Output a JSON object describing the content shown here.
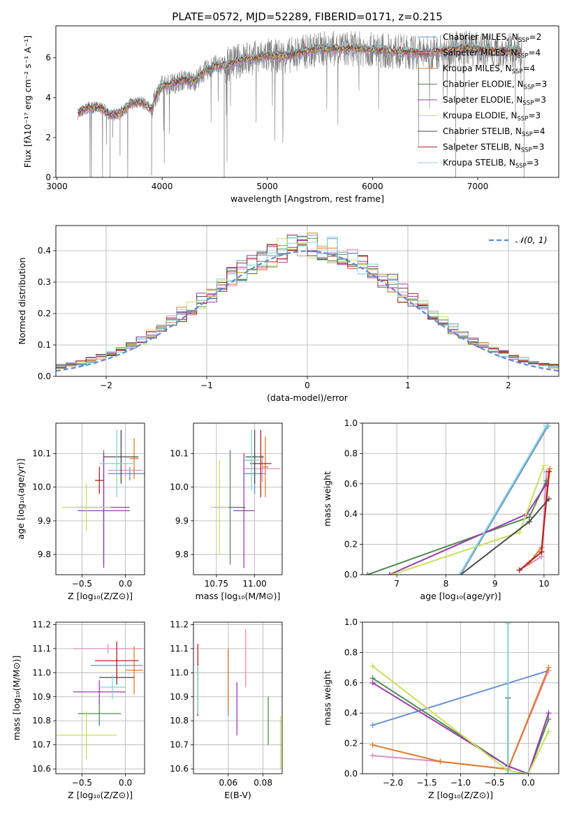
{
  "title": "PLATE=0572, MJD=52289, FIBERID=0171, z=0.215",
  "colors": {
    "Chabrier MILES": "#6a8fd6",
    "Salpeter MILES": "#e08cc4",
    "Kroupa MILES": "#e07b24",
    "Chabrier ELODIE": "#4f8a4f",
    "Salpeter ELODIE": "#9a3cb0",
    "Kroupa ELODIE": "#c9e05a",
    "Chabrier STELIB": "#4a4a4a",
    "Salpeter STELIB": "#b22222",
    "Kroupa STELIB": "#7fd3d6",
    "data": "#808080",
    "normal": "#5b8ad6",
    "grid": "#b0b0b0"
  },
  "chart_data": [
    {
      "id": "spectrum",
      "type": "line",
      "xlabel": "wavelength [Angstrom, rest frame]",
      "ylabel": "Flux [fλ10⁻¹⁷ erg cm⁻² s⁻¹ A⁻¹]",
      "xlim": [
        2990,
        7770
      ],
      "ylim": [
        0,
        7.6
      ],
      "xticks": [
        3000,
        4000,
        5000,
        6000,
        7000
      ],
      "yticks": [
        0,
        2,
        4,
        6
      ],
      "grid": false,
      "legend_position": "top-right",
      "legend": [
        {
          "label": "Chabrier MILES, N",
          "sub": "SSP",
          "tail": "=2"
        },
        {
          "label": "Salpeter MILES, N",
          "sub": "SSP",
          "tail": "=4"
        },
        {
          "label": "Kroupa MILES, N",
          "sub": "SSP",
          "tail": "=4"
        },
        {
          "label": "Chabrier ELODIE, N",
          "sub": "SSP",
          "tail": "=3"
        },
        {
          "label": "Salpeter ELODIE, N",
          "sub": "SSP",
          "tail": "=3"
        },
        {
          "label": "Kroupa ELODIE, N",
          "sub": "SSP",
          "tail": "=3"
        },
        {
          "label": "Chabrier STELIB, N",
          "sub": "SSP",
          "tail": "=4"
        },
        {
          "label": "Salpeter STELIB, N",
          "sub": "SSP",
          "tail": "=3"
        },
        {
          "label": "Kroupa STELIB, N",
          "sub": "SSP",
          "tail": "=3"
        }
      ],
      "continuum": [
        [
          3200,
          3.2
        ],
        [
          3300,
          3.5
        ],
        [
          3400,
          3.5
        ],
        [
          3450,
          3.4
        ],
        [
          3500,
          3.1
        ],
        [
          3600,
          3.2
        ],
        [
          3700,
          3.7
        ],
        [
          3800,
          3.8
        ],
        [
          3900,
          3.4
        ],
        [
          3950,
          4.2
        ],
        [
          4000,
          4.6
        ],
        [
          4100,
          4.7
        ],
        [
          4200,
          4.9
        ],
        [
          4300,
          4.8
        ],
        [
          4400,
          5.3
        ],
        [
          4500,
          5.6
        ],
        [
          4600,
          5.6
        ],
        [
          4700,
          5.8
        ],
        [
          4800,
          5.95
        ],
        [
          4900,
          6.0
        ],
        [
          5000,
          6.1
        ],
        [
          5100,
          6.05
        ],
        [
          5200,
          6.1
        ],
        [
          5300,
          6.25
        ],
        [
          5500,
          6.45
        ],
        [
          5700,
          6.45
        ],
        [
          5900,
          6.45
        ],
        [
          6100,
          6.35
        ],
        [
          6300,
          6.3
        ],
        [
          6500,
          6.2
        ],
        [
          6700,
          6.35
        ],
        [
          6900,
          6.5
        ],
        [
          7000,
          6.4
        ],
        [
          7200,
          6.3
        ],
        [
          7400,
          6.35
        ]
      ],
      "absorption_dips": [
        [
          3505,
          0.0
        ],
        [
          3530,
          2.0
        ],
        [
          3600,
          1.1
        ],
        [
          3900,
          0.1
        ],
        [
          4590,
          0.0
        ],
        [
          6790,
          0.0
        ],
        [
          7440,
          0.0
        ]
      ]
    },
    {
      "id": "residuals",
      "type": "histogram",
      "xlabel": "(data-model)/error",
      "ylabel": "Normed distribution",
      "xlim": [
        -2.5,
        2.5
      ],
      "ylim": [
        0,
        0.48
      ],
      "xticks": [
        -2,
        -1,
        0,
        1,
        2
      ],
      "yticks": [
        0.0,
        0.1,
        0.2,
        0.3,
        0.4
      ],
      "grid": true,
      "legend_position": "top-right",
      "normal_label": "𝒩(0, 1)",
      "bin_width": 0.1,
      "bin_start": -2.5
    },
    {
      "id": "age_vs_Z",
      "type": "errorbar",
      "xlabel": "Z [log₁₀(Z/Z⊙)]",
      "ylabel": "age  [log₁₀(age/yr)]",
      "xlim": [
        -0.8,
        0.22
      ],
      "ylim": [
        9.74,
        10.19
      ],
      "xticks": [
        -0.5,
        0.0
      ],
      "yticks": [
        9.8,
        9.9,
        10.0,
        10.1
      ],
      "grid": true,
      "points": [
        {
          "model": "Chabrier MILES",
          "x": 0.05,
          "xerr": 0.25,
          "y": 10.04,
          "yerr": 0.02
        },
        {
          "model": "Salpeter MILES",
          "x": 0.0,
          "xerr": 0.2,
          "y": 10.05,
          "yerr": 0.02
        },
        {
          "model": "Kroupa MILES",
          "x": 0.1,
          "xerr": 0.05,
          "y": 10.085,
          "yerr": 0.06
        },
        {
          "model": "Chabrier ELODIE",
          "x": -0.25,
          "xerr": 0.3,
          "y": 9.94,
          "yerr": 0.17
        },
        {
          "model": "Salpeter ELODIE",
          "x": -0.25,
          "xerr": 0.3,
          "y": 9.93,
          "yerr": 0.17
        },
        {
          "model": "Kroupa ELODIE",
          "x": -0.45,
          "xerr": 0.28,
          "y": 9.94,
          "yerr": 0.07
        },
        {
          "model": "Chabrier STELIB",
          "x": -0.05,
          "xerr": 0.2,
          "y": 10.09,
          "yerr": 0.08
        },
        {
          "model": "Salpeter STELIB",
          "x": -0.3,
          "xerr": 0.05,
          "y": 10.02,
          "yerr": 0.04
        },
        {
          "model": "Kroupa STELIB",
          "x": -0.1,
          "xerr": 0.2,
          "y": 10.07,
          "yerr": 0.1
        }
      ]
    },
    {
      "id": "age_vs_mass",
      "type": "errorbar",
      "xlabel": "mass [log₁₀(M/M⊙)]",
      "ylabel": "",
      "xlim": [
        10.6,
        11.18
      ],
      "ylim": [
        9.74,
        10.19
      ],
      "xticks": [
        10.75,
        11.0
      ],
      "yticks": [
        9.8,
        9.9,
        10.0,
        10.1
      ],
      "grid": true,
      "points": [
        {
          "model": "Chabrier MILES",
          "x": 11.0,
          "xerr": 0.07,
          "y": 10.04,
          "yerr": 0.06
        },
        {
          "model": "Salpeter MILES",
          "x": 11.05,
          "xerr": 0.12,
          "y": 10.055,
          "yerr": 0.04
        },
        {
          "model": "Kroupa MILES",
          "x": 11.07,
          "xerr": 0.02,
          "y": 10.06,
          "yerr": 0.09
        },
        {
          "model": "Chabrier ELODIE",
          "x": 10.84,
          "xerr": 0.1,
          "y": 9.94,
          "yerr": 0.17
        },
        {
          "model": "Salpeter ELODIE",
          "x": 10.93,
          "xerr": 0.07,
          "y": 9.93,
          "yerr": 0.17
        },
        {
          "model": "Kroupa ELODIE",
          "x": 10.77,
          "xerr": 0.06,
          "y": 9.94,
          "yerr": 0.14
        },
        {
          "model": "Chabrier STELIB",
          "x": 11.0,
          "xerr": 0.06,
          "y": 10.09,
          "yerr": 0.08
        },
        {
          "model": "Salpeter STELIB",
          "x": 11.04,
          "xerr": 0.07,
          "y": 10.07,
          "yerr": 0.1
        },
        {
          "model": "Kroupa STELIB",
          "x": 10.98,
          "xerr": 0.05,
          "y": 10.08,
          "yerr": 0.09
        }
      ]
    },
    {
      "id": "weight_vs_age",
      "type": "line",
      "xlabel": "age  [log₁₀(age/yr)]",
      "ylabel": "mass weight",
      "xlim": [
        6.3,
        10.3
      ],
      "ylim": [
        0,
        1.0
      ],
      "xticks": [
        7,
        8,
        9,
        10
      ],
      "yticks": [
        0.0,
        0.2,
        0.4,
        0.6,
        0.8,
        1.0
      ],
      "grid": true,
      "series": [
        {
          "model": "Chabrier MILES",
          "points": [
            [
              8.3,
              0.0
            ],
            [
              10.08,
              0.98
            ]
          ]
        },
        {
          "model": "Salpeter MILES",
          "points": [
            [
              9.5,
              0.03
            ],
            [
              9.95,
              0.12
            ],
            [
              10.05,
              0.68
            ]
          ]
        },
        {
          "model": "Kroupa MILES",
          "points": [
            [
              9.5,
              0.03
            ],
            [
              9.7,
              0.08
            ],
            [
              9.95,
              0.18
            ],
            [
              10.12,
              0.7
            ]
          ]
        },
        {
          "model": "Chabrier ELODIE",
          "points": [
            [
              6.4,
              0.0
            ],
            [
              9.7,
              0.38
            ],
            [
              10.05,
              0.62
            ]
          ]
        },
        {
          "model": "Salpeter ELODIE",
          "points": [
            [
              6.85,
              0.0
            ],
            [
              9.65,
              0.4
            ],
            [
              10.05,
              0.6
            ]
          ]
        },
        {
          "model": "Kroupa ELODIE",
          "points": [
            [
              6.9,
              0.0
            ],
            [
              9.5,
              0.28
            ],
            [
              10.0,
              0.72
            ]
          ]
        },
        {
          "model": "Chabrier STELIB",
          "points": [
            [
              8.3,
              0.0
            ],
            [
              9.7,
              0.35
            ],
            [
              10.1,
              0.5
            ]
          ]
        },
        {
          "model": "Salpeter STELIB",
          "points": [
            [
              9.5,
              0.03
            ],
            [
              9.95,
              0.15
            ],
            [
              10.1,
              0.68
            ]
          ]
        },
        {
          "model": "Kroupa STELIB",
          "points": [
            [
              8.28,
              0.0
            ],
            [
              10.05,
              0.98
            ]
          ]
        }
      ]
    },
    {
      "id": "mass_vs_Z",
      "type": "errorbar",
      "xlabel": "Z [log₁₀(Z/Z⊙)]",
      "ylabel": "mass [log₁₀(M/M⊙)]",
      "xlim": [
        -0.8,
        0.22
      ],
      "ylim": [
        10.58,
        11.21
      ],
      "xticks": [
        -0.5,
        0.0
      ],
      "yticks": [
        10.6,
        10.7,
        10.8,
        10.9,
        11.0,
        11.1,
        11.2
      ],
      "grid": true,
      "points": [
        {
          "model": "Chabrier MILES",
          "x": -0.1,
          "xerr": 0.3,
          "y": 11.03,
          "yerr": 0.03
        },
        {
          "model": "Salpeter MILES",
          "x": -0.2,
          "xerr": 0.4,
          "y": 11.1,
          "yerr": 0.02
        },
        {
          "model": "Kroupa MILES",
          "x": 0.1,
          "xerr": 0.1,
          "y": 11.01,
          "yerr": 0.1
        },
        {
          "model": "Chabrier ELODIE",
          "x": -0.3,
          "xerr": 0.25,
          "y": 10.83,
          "yerr": 0.05
        },
        {
          "model": "Salpeter ELODIE",
          "x": -0.3,
          "xerr": 0.3,
          "y": 10.92,
          "yerr": 0.05
        },
        {
          "model": "Kroupa ELODIE",
          "x": -0.45,
          "xerr": 0.35,
          "y": 10.74,
          "yerr": 0.1
        },
        {
          "model": "Chabrier STELIB",
          "x": -0.1,
          "xerr": 0.2,
          "y": 10.98,
          "yerr": 0.03
        },
        {
          "model": "Salpeter STELIB",
          "x": -0.1,
          "xerr": 0.25,
          "y": 11.05,
          "yerr": 0.08
        },
        {
          "model": "Kroupa STELIB",
          "x": -0.15,
          "xerr": 0.15,
          "y": 10.94,
          "yerr": 0.05
        }
      ]
    },
    {
      "id": "mass_vs_EBV",
      "type": "errorbar",
      "xlabel": "E(B-V)",
      "ylabel": "",
      "xlim": [
        0.04,
        0.091
      ],
      "ylim": [
        10.58,
        11.21
      ],
      "xticks": [
        0.06,
        0.08
      ],
      "yticks": [
        10.6,
        10.7,
        10.8,
        10.9,
        11.0,
        11.1,
        11.2
      ],
      "grid": true,
      "points": [
        {
          "model": "Chabrier MILES",
          "x": 0.06,
          "y": 10.96,
          "yerr": 0.14
        },
        {
          "model": "Salpeter MILES",
          "x": 0.07,
          "y": 11.06,
          "yerr": 0.12
        },
        {
          "model": "Kroupa MILES",
          "x": 0.06,
          "y": 10.97,
          "yerr": 0.13
        },
        {
          "model": "Chabrier ELODIE",
          "x": 0.083,
          "y": 10.8,
          "yerr": 0.1
        },
        {
          "model": "Salpeter ELODIE",
          "x": 0.065,
          "y": 10.85,
          "yerr": 0.11
        },
        {
          "model": "Kroupa ELODIE",
          "x": 0.09,
          "y": 10.71,
          "yerr": 0.11
        },
        {
          "model": "Chabrier STELIB",
          "x": 0.0425,
          "y": 10.94,
          "yerr": 0.1
        },
        {
          "model": "Salpeter STELIB",
          "x": 0.0425,
          "y": 10.97,
          "yerr": 0.15
        },
        {
          "model": "Kroupa STELIB",
          "x": 0.0425,
          "y": 10.93,
          "yerr": 0.1
        }
      ]
    },
    {
      "id": "weight_vs_Z",
      "type": "line",
      "xlabel": "Z [log₁₀(Z/Z⊙)]",
      "ylabel": "mass weight",
      "xlim": [
        -2.45,
        0.45
      ],
      "ylim": [
        0,
        1.0
      ],
      "xticks": [
        -2.0,
        -1.5,
        -1.0,
        -0.5,
        0.0
      ],
      "yticks": [
        0.0,
        0.2,
        0.4,
        0.6,
        0.8,
        1.0
      ],
      "grid": true,
      "series": [
        {
          "model": "Chabrier MILES",
          "points": [
            [
              -2.3,
              0.32
            ],
            [
              0.3,
              0.68
            ]
          ]
        },
        {
          "model": "Salpeter MILES",
          "points": [
            [
              -2.3,
              0.12
            ],
            [
              -1.3,
              0.08
            ],
            [
              -0.3,
              0.03
            ],
            [
              0.3,
              0.68
            ]
          ]
        },
        {
          "model": "Kroupa MILES",
          "points": [
            [
              -2.3,
              0.19
            ],
            [
              -1.3,
              0.08
            ],
            [
              -0.3,
              0.03
            ],
            [
              0.3,
              0.7
            ]
          ]
        },
        {
          "model": "Chabrier ELODIE",
          "points": [
            [
              -2.3,
              0.63
            ],
            [
              -0.3,
              0.05
            ],
            [
              0.0,
              0.0
            ],
            [
              0.3,
              0.36
            ]
          ]
        },
        {
          "model": "Salpeter ELODIE",
          "points": [
            [
              -2.3,
              0.6
            ],
            [
              -0.3,
              0.05
            ],
            [
              0.0,
              0.0
            ],
            [
              0.3,
              0.4
            ]
          ]
        },
        {
          "model": "Kroupa ELODIE",
          "points": [
            [
              -2.3,
              0.71
            ],
            [
              -0.3,
              0.02
            ],
            [
              0.0,
              0.0
            ],
            [
              0.3,
              0.28
            ]
          ]
        },
        {
          "model": "Chabrier STELIB",
          "points": [
            [
              -0.3,
              0.5
            ],
            [
              -0.3,
              0.0
            ]
          ]
        },
        {
          "model": "Salpeter STELIB",
          "points": [
            [
              -0.3,
              0.0
            ],
            [
              -0.3,
              0.0
            ]
          ]
        },
        {
          "model": "Kroupa STELIB",
          "points": [
            [
              -0.3,
              0.99
            ],
            [
              -0.3,
              0.0
            ],
            [
              0.0,
              0.0
            ]
          ]
        }
      ]
    }
  ]
}
